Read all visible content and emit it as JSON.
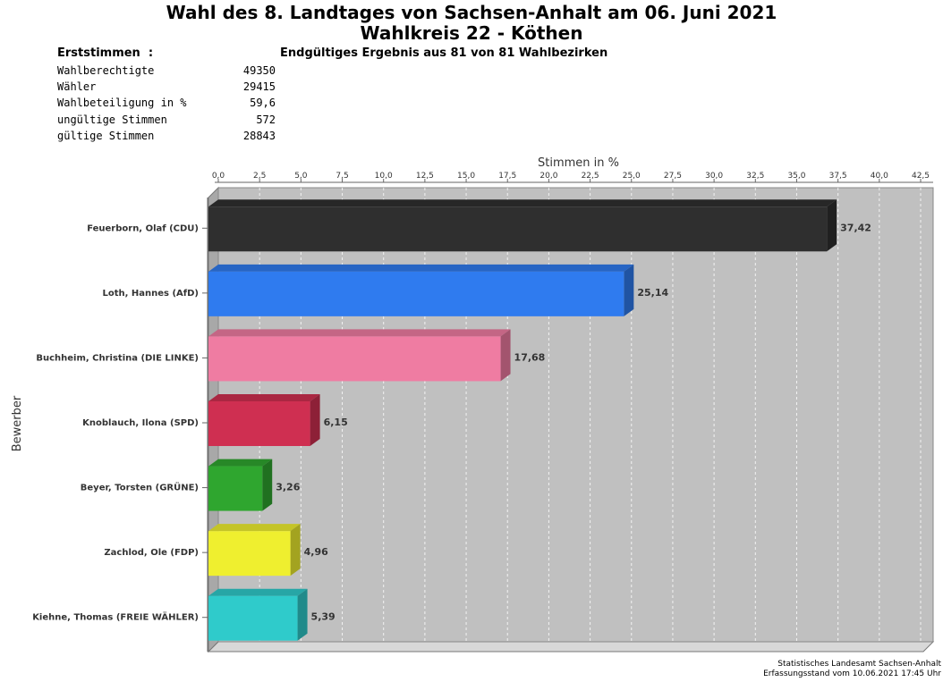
{
  "header": {
    "title_line1": "Wahl des 8. Landtages von Sachsen-Anhalt am 06. Juni 2021",
    "title_line2": "Wahlkreis 22 - Köthen"
  },
  "stats": {
    "heading": "Erststimmen  :",
    "result_status": "Endgültiges Ergebnis aus 81 von 81 Wahlbezirken",
    "rows": [
      {
        "label": "Wahlberechtigte",
        "value": "49350"
      },
      {
        "label": "Wähler",
        "value": "29415"
      },
      {
        "label": "Wahlbeteiligung in %",
        "value": "59,6"
      },
      {
        "label": "ungültige Stimmen",
        "value": "572"
      },
      {
        "label": "gültige Stimmen",
        "value": "28843"
      }
    ]
  },
  "chart_data": {
    "type": "bar",
    "orientation": "horizontal",
    "xlabel": "Stimmen in %",
    "ylabel": "Bewerber",
    "xlim": [
      0,
      42.5
    ],
    "ticks": [
      "0,0",
      "2,5",
      "5,0",
      "7,5",
      "10,0",
      "12,5",
      "15,0",
      "17,5",
      "20,0",
      "22,5",
      "25,0",
      "27,5",
      "30,0",
      "32,5",
      "35,0",
      "37,5",
      "40,0",
      "42,5"
    ],
    "grid": true,
    "categories": [
      "Feuerborn, Olaf (CDU)",
      "Loth, Hannes (AfD)",
      "Buchheim, Christina (DIE LINKE)",
      "Knoblauch, Ilona (SPD)",
      "Beyer, Torsten (GRÜNE)",
      "Zachlod, Ole (FDP)",
      "Kiehne, Thomas (FREIE WÄHLER)"
    ],
    "values": [
      37.42,
      25.14,
      17.68,
      6.15,
      3.26,
      4.96,
      5.39
    ],
    "value_labels": [
      "37,42",
      "25,14",
      "17,68",
      "6,15",
      "3,26",
      "4,96",
      "5,39"
    ],
    "colors": [
      "#2f2f2f",
      "#2f7bef",
      "#ef7ca2",
      "#cf2f51",
      "#2fa62f",
      "#efef2f",
      "#2fcbcb"
    ]
  },
  "footer": {
    "source": "Statistisches Landesamt Sachsen-Anhalt",
    "timestamp": "Erfassungsstand vom 10.06.2021 17:45 Uhr"
  }
}
